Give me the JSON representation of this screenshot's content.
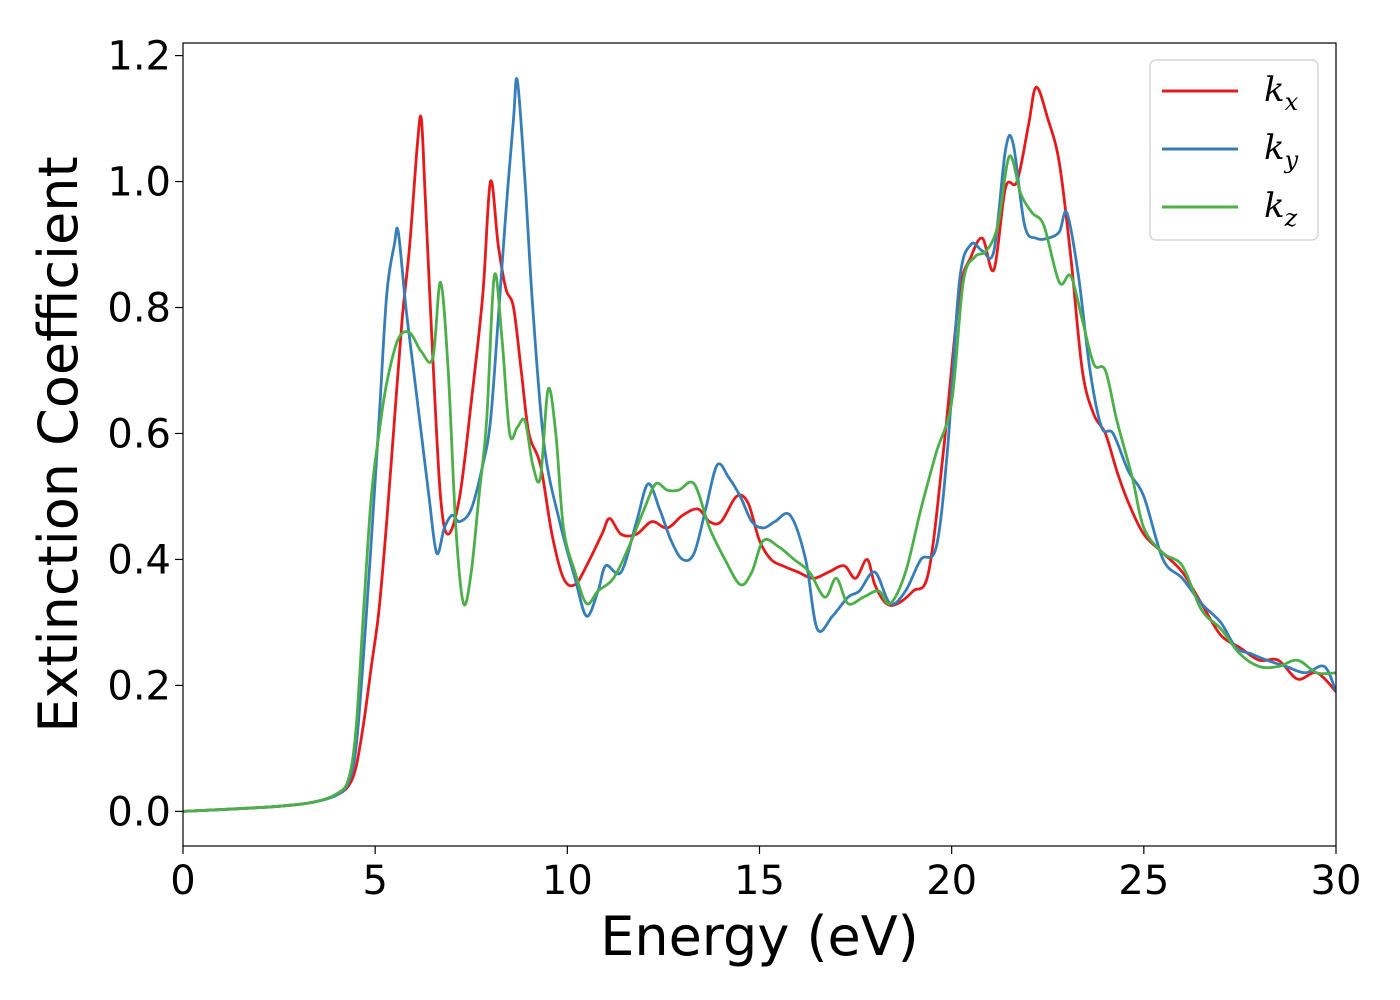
{
  "chart_data": {
    "type": "line",
    "title": "",
    "xlabel": "Energy (eV)",
    "ylabel": "Extinction Coefficient",
    "xlim": [
      0,
      30
    ],
    "ylim": [
      -0.055,
      1.22
    ],
    "xticks": [
      0,
      5,
      10,
      15,
      20,
      25,
      30
    ],
    "xtick_labels": [
      "0",
      "5",
      "10",
      "15",
      "20",
      "25",
      "30"
    ],
    "yticks": [
      0.0,
      0.2,
      0.4,
      0.6,
      0.8,
      1.0,
      1.2
    ],
    "ytick_labels": [
      "0.0",
      "0.2",
      "0.4",
      "0.6",
      "0.8",
      "1.0",
      "1.2"
    ],
    "grid": false,
    "legend_position": "top-right",
    "series": [
      {
        "name": "k_x",
        "label_base": "k",
        "label_sub": "x",
        "color": "#e41a1c",
        "x": [
          0,
          2,
          3,
          3.5,
          4,
          4.3,
          4.5,
          4.7,
          4.9,
          5.1,
          5.3,
          5.5,
          5.7,
          5.9,
          6.1,
          6.2,
          6.3,
          6.5,
          6.7,
          6.9,
          7.2,
          7.5,
          7.8,
          8.0,
          8.2,
          8.4,
          8.6,
          8.8,
          9.0,
          9.3,
          9.6,
          9.9,
          10.2,
          10.5,
          10.9,
          11.1,
          11.4,
          11.8,
          12.2,
          12.6,
          13.0,
          13.4,
          13.7,
          14.0,
          14.4,
          14.7,
          15.0,
          15.3,
          15.6,
          16.0,
          16.4,
          16.8,
          17.2,
          17.5,
          17.8,
          18.0,
          18.3,
          18.6,
          19.0,
          19.4,
          19.8,
          20.2,
          20.5,
          20.8,
          21.1,
          21.4,
          21.7,
          22.0,
          22.2,
          22.5,
          22.8,
          23.1,
          23.4,
          23.7,
          24.0,
          24.3,
          24.6,
          25.0,
          25.5,
          26.0,
          26.5,
          27.0,
          27.5,
          28.0,
          28.5,
          29.0,
          29.5,
          30.0
        ],
        "y": [
          0.0,
          0.006,
          0.011,
          0.016,
          0.026,
          0.04,
          0.07,
          0.14,
          0.23,
          0.32,
          0.46,
          0.62,
          0.78,
          0.9,
          1.06,
          1.1,
          0.98,
          0.72,
          0.5,
          0.44,
          0.5,
          0.65,
          0.82,
          1.0,
          0.9,
          0.83,
          0.8,
          0.7,
          0.6,
          0.55,
          0.44,
          0.37,
          0.36,
          0.39,
          0.44,
          0.465,
          0.44,
          0.44,
          0.46,
          0.45,
          0.47,
          0.48,
          0.46,
          0.46,
          0.5,
          0.49,
          0.43,
          0.4,
          0.39,
          0.38,
          0.37,
          0.38,
          0.39,
          0.37,
          0.4,
          0.36,
          0.33,
          0.33,
          0.35,
          0.38,
          0.58,
          0.82,
          0.88,
          0.91,
          0.86,
          0.99,
          1.0,
          1.09,
          1.15,
          1.1,
          1.03,
          0.88,
          0.7,
          0.63,
          0.6,
          0.54,
          0.49,
          0.44,
          0.41,
          0.38,
          0.33,
          0.28,
          0.26,
          0.24,
          0.24,
          0.21,
          0.22,
          0.19
        ]
      },
      {
        "name": "k_y",
        "label_base": "k",
        "label_sub": "y",
        "color": "#377eb8",
        "x": [
          0,
          2,
          3,
          3.5,
          4,
          4.3,
          4.5,
          4.7,
          4.9,
          5.1,
          5.3,
          5.5,
          5.6,
          5.8,
          6.0,
          6.2,
          6.4,
          6.6,
          6.8,
          7.0,
          7.2,
          7.5,
          7.8,
          8.0,
          8.2,
          8.4,
          8.6,
          8.7,
          8.9,
          9.1,
          9.4,
          9.8,
          10.2,
          10.5,
          10.8,
          11.0,
          11.4,
          11.8,
          12.1,
          12.4,
          12.7,
          13.0,
          13.3,
          13.6,
          13.9,
          14.2,
          14.5,
          14.8,
          15.1,
          15.4,
          15.8,
          16.2,
          16.5,
          16.9,
          17.3,
          17.6,
          18.0,
          18.4,
          18.8,
          19.2,
          19.6,
          19.9,
          20.2,
          20.5,
          20.8,
          21.1,
          21.4,
          21.6,
          21.9,
          22.2,
          22.5,
          22.8,
          23.0,
          23.3,
          23.6,
          23.9,
          24.2,
          24.6,
          25.0,
          25.5,
          26.0,
          26.5,
          27.0,
          27.4,
          27.8,
          28.2,
          28.7,
          29.2,
          29.7,
          30.0
        ],
        "y": [
          0.0,
          0.006,
          0.011,
          0.016,
          0.026,
          0.045,
          0.1,
          0.25,
          0.43,
          0.62,
          0.82,
          0.9,
          0.92,
          0.8,
          0.7,
          0.6,
          0.5,
          0.41,
          0.45,
          0.47,
          0.46,
          0.48,
          0.55,
          0.62,
          0.78,
          0.95,
          1.1,
          1.16,
          1.0,
          0.8,
          0.58,
          0.46,
          0.37,
          0.31,
          0.35,
          0.39,
          0.38,
          0.46,
          0.52,
          0.48,
          0.43,
          0.4,
          0.41,
          0.48,
          0.55,
          0.53,
          0.5,
          0.46,
          0.45,
          0.46,
          0.47,
          0.4,
          0.29,
          0.31,
          0.34,
          0.35,
          0.38,
          0.33,
          0.35,
          0.4,
          0.42,
          0.58,
          0.84,
          0.9,
          0.89,
          0.89,
          1.05,
          1.06,
          0.93,
          0.91,
          0.91,
          0.92,
          0.95,
          0.85,
          0.7,
          0.61,
          0.6,
          0.54,
          0.5,
          0.4,
          0.37,
          0.33,
          0.3,
          0.26,
          0.25,
          0.24,
          0.23,
          0.22,
          0.23,
          0.19
        ]
      },
      {
        "name": "k_z",
        "label_base": "k",
        "label_sub": "z",
        "color": "#4daf4a",
        "x": [
          0,
          2,
          3,
          3.5,
          4,
          4.3,
          4.5,
          4.7,
          4.9,
          5.1,
          5.3,
          5.6,
          5.9,
          6.2,
          6.5,
          6.7,
          6.9,
          7.1,
          7.3,
          7.5,
          7.7,
          7.9,
          8.1,
          8.3,
          8.5,
          8.7,
          8.9,
          9.1,
          9.3,
          9.5,
          9.7,
          9.9,
          10.2,
          10.5,
          10.8,
          11.2,
          11.6,
          12.0,
          12.3,
          12.6,
          12.9,
          13.3,
          13.7,
          14.1,
          14.5,
          14.8,
          15.1,
          15.5,
          15.9,
          16.3,
          16.7,
          17.0,
          17.3,
          17.7,
          18.1,
          18.4,
          18.8,
          19.2,
          19.6,
          20.0,
          20.3,
          20.6,
          20.9,
          21.2,
          21.5,
          21.8,
          22.1,
          22.4,
          22.8,
          23.1,
          23.4,
          23.7,
          24.0,
          24.3,
          24.7,
          25.0,
          25.5,
          26.0,
          26.5,
          27.0,
          27.5,
          28.0,
          28.5,
          29.0,
          29.5,
          30.0
        ],
        "y": [
          0.0,
          0.006,
          0.011,
          0.016,
          0.028,
          0.05,
          0.13,
          0.32,
          0.5,
          0.6,
          0.68,
          0.75,
          0.76,
          0.73,
          0.72,
          0.84,
          0.7,
          0.45,
          0.33,
          0.38,
          0.5,
          0.62,
          0.85,
          0.75,
          0.6,
          0.61,
          0.62,
          0.55,
          0.53,
          0.67,
          0.6,
          0.45,
          0.38,
          0.33,
          0.35,
          0.37,
          0.42,
          0.48,
          0.52,
          0.51,
          0.51,
          0.52,
          0.45,
          0.4,
          0.36,
          0.38,
          0.43,
          0.42,
          0.4,
          0.38,
          0.34,
          0.37,
          0.33,
          0.34,
          0.35,
          0.33,
          0.38,
          0.48,
          0.57,
          0.65,
          0.84,
          0.88,
          0.89,
          0.93,
          1.04,
          0.98,
          0.95,
          0.93,
          0.84,
          0.85,
          0.78,
          0.71,
          0.7,
          0.62,
          0.53,
          0.45,
          0.41,
          0.39,
          0.32,
          0.29,
          0.25,
          0.23,
          0.23,
          0.24,
          0.22,
          0.22
        ]
      }
    ]
  }
}
